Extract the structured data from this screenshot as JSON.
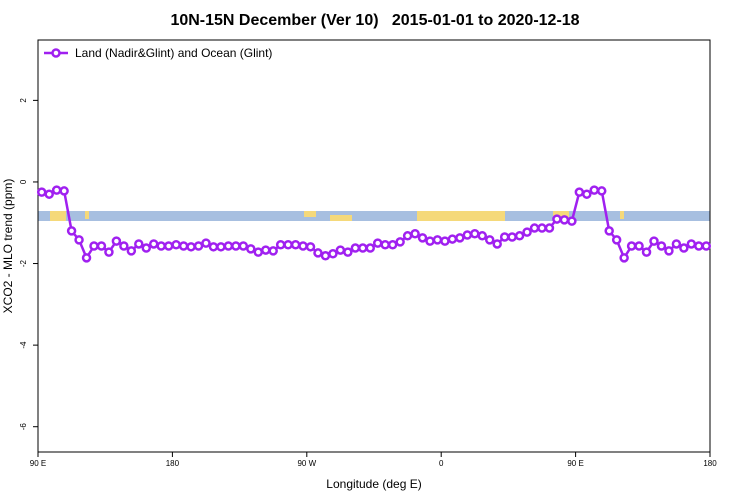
{
  "chart_data": {
    "type": "line",
    "title": "10N-15N December (Ver 10)   2015-01-01 to 2020-12-18",
    "xlabel": "Longitude (deg E)",
    "ylabel": "XCO2 - MLO trend (ppm)",
    "x": [
      92.5,
      97.5,
      102.5,
      107.5,
      112.5,
      117.5,
      122.5,
      127.5,
      132.5,
      137.5,
      142.5,
      147.5,
      152.5,
      157.5,
      162.5,
      167.5,
      172.5,
      177.5,
      182.5,
      187.5,
      192.5,
      197.5,
      202.5,
      207.5,
      212.5,
      217.5,
      222.5,
      227.5,
      232.5,
      237.5,
      242.5,
      247.5,
      252.5,
      257.5,
      262.5,
      267.5,
      272.5,
      277.5,
      282.5,
      287.5,
      292.5,
      297.5,
      302.5,
      307.5,
      312.5,
      317.5,
      322.5,
      327.5,
      332.5,
      337.5,
      342.5,
      347.5,
      352.5,
      357.5,
      362.5,
      367.5,
      372.5,
      377.5,
      382.5,
      387.5,
      392.5,
      397.5,
      402.5,
      407.5,
      412.5,
      417.5,
      422.5,
      427.5,
      432.5,
      437.5,
      442.5,
      447.5,
      452.5,
      457.5,
      462.5,
      467.5,
      472.5,
      477.5,
      482.5,
      487.5,
      492.5,
      497.5,
      502.5,
      507.5,
      512.5,
      517.5,
      522.5,
      527.5,
      532.5,
      537.5
    ],
    "series": [
      {
        "name": "Land (Nadir&Glint) and Ocean (Glint)",
        "color": "#a020f0",
        "values": [
          -0.25,
          -0.3,
          -0.2,
          -0.22,
          -1.2,
          -1.42,
          -1.86,
          -1.57,
          -1.57,
          -1.72,
          -1.45,
          -1.57,
          -1.69,
          -1.52,
          -1.62,
          -1.52,
          -1.57,
          -1.57,
          -1.54,
          -1.57,
          -1.59,
          -1.57,
          -1.5,
          -1.59,
          -1.59,
          -1.57,
          -1.57,
          -1.57,
          -1.64,
          -1.72,
          -1.67,
          -1.69,
          -1.54,
          -1.54,
          -1.54,
          -1.57,
          -1.59,
          -1.74,
          -1.81,
          -1.76,
          -1.67,
          -1.72,
          -1.62,
          -1.62,
          -1.62,
          -1.5,
          -1.54,
          -1.54,
          -1.47,
          -1.32,
          -1.27,
          -1.37,
          -1.45,
          -1.42,
          -1.45,
          -1.4,
          -1.37,
          -1.3,
          -1.27,
          -1.32,
          -1.42,
          -1.52,
          -1.35,
          -1.35,
          -1.32,
          -1.23,
          -1.13,
          -1.13,
          -1.13,
          -0.91,
          -0.93,
          -0.96,
          -0.25,
          -0.3,
          -0.2,
          -0.22,
          -1.2,
          -1.42,
          -1.86,
          -1.57,
          -1.57,
          -1.72,
          -1.45,
          -1.57,
          -1.69,
          -1.52,
          -1.62,
          -1.52,
          -1.57,
          -1.57
        ]
      }
    ],
    "xlim": [
      90,
      540
    ],
    "xticks": [
      {
        "value": 90,
        "label": "90 E"
      },
      {
        "value": 180,
        "label": "180"
      },
      {
        "value": 270,
        "label": "90 W"
      },
      {
        "value": 360,
        "label": "0"
      },
      {
        "value": 450,
        "label": "90 E"
      },
      {
        "value": 540,
        "label": "180"
      }
    ],
    "ylim": [
      -6.62,
      3.48
    ],
    "yticks": [
      2,
      0,
      -2,
      -4,
      -6
    ],
    "legend": "top-left"
  }
}
